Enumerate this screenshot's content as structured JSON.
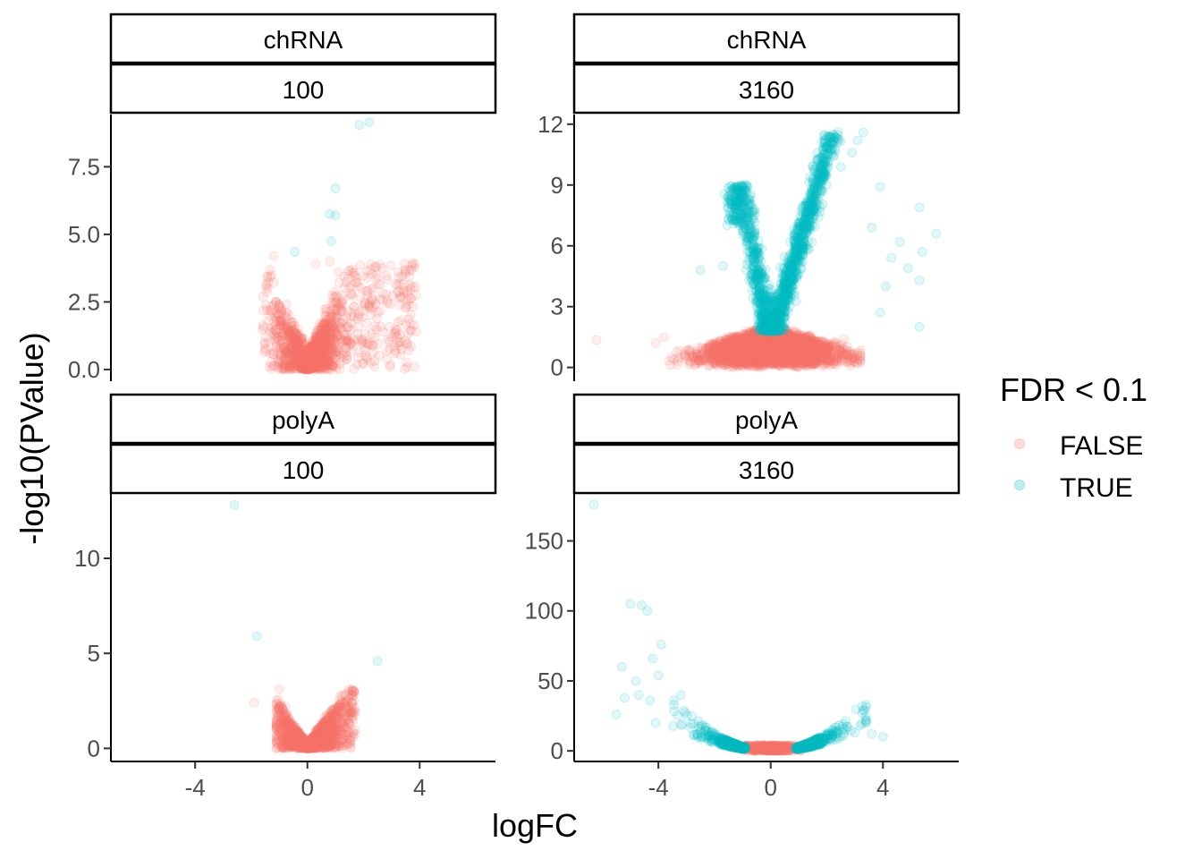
{
  "chart_data": {
    "type": "scatter",
    "facets": [
      {
        "id": "chRNA-100",
        "strip_top": "chRNA",
        "strip_bottom": "100",
        "ylim": [
          -0.3,
          9.3
        ],
        "yticks": [
          0.0,
          2.5,
          5.0,
          7.5
        ],
        "ytick_labels": [
          "0.0",
          "2.5",
          "5.0",
          "7.5"
        ],
        "true_points": [
          {
            "x": 1.85,
            "y": 9.05
          },
          {
            "x": 2.2,
            "y": 9.15
          },
          {
            "x": 1.0,
            "y": 6.7
          },
          {
            "x": 0.8,
            "y": 5.75
          },
          {
            "x": 1.0,
            "y": 5.7
          },
          {
            "x": 0.85,
            "y": 4.75
          },
          {
            "x": -0.45,
            "y": 4.35
          }
        ],
        "false_cloud": {
          "kind": "v",
          "xmin": -1.6,
          "xmax": 3.9,
          "ymax": 4.0,
          "ybase": 0.9
        },
        "false_points": [
          {
            "x": -1.2,
            "y": 4.2
          },
          {
            "x": 0.3,
            "y": 3.9
          },
          {
            "x": 0.8,
            "y": 4.0
          },
          {
            "x": 1.1,
            "y": 3.6
          },
          {
            "x": 2.1,
            "y": 2.9
          },
          {
            "x": 3.7,
            "y": 0.85
          },
          {
            "x": -1.5,
            "y": 0.7
          },
          {
            "x": -1.3,
            "y": 0.25
          },
          {
            "x": 1.6,
            "y": 2.1
          },
          {
            "x": 2.4,
            "y": 1.6
          },
          {
            "x": 3.2,
            "y": 1.2
          }
        ]
      },
      {
        "id": "chRNA-3160",
        "strip_top": "chRNA",
        "strip_bottom": "3160",
        "ylim": [
          -0.5,
          12.3
        ],
        "yticks": [
          0,
          3,
          6,
          9,
          12
        ],
        "ytick_labels": [
          "0",
          "3",
          "6",
          "9",
          "12"
        ],
        "true_points": [
          {
            "x": 5.3,
            "y": 7.9
          },
          {
            "x": 5.9,
            "y": 6.6
          },
          {
            "x": 4.6,
            "y": 6.2
          },
          {
            "x": 5.4,
            "y": 5.7
          },
          {
            "x": 3.9,
            "y": 8.9
          },
          {
            "x": 3.6,
            "y": 6.9
          },
          {
            "x": 4.9,
            "y": 4.9
          },
          {
            "x": 5.3,
            "y": 4.3
          },
          {
            "x": 3.9,
            "y": 2.7
          },
          {
            "x": 5.3,
            "y": 2.0
          },
          {
            "x": 4.3,
            "y": 5.4
          },
          {
            "x": 4.1,
            "y": 4.0
          },
          {
            "x": -2.5,
            "y": 4.8
          },
          {
            "x": -1.7,
            "y": 5.0
          },
          {
            "x": 2.4,
            "y": 11.6
          },
          {
            "x": 3.3,
            "y": 11.6
          },
          {
            "x": 3.1,
            "y": 11.2
          },
          {
            "x": 2.9,
            "y": 10.6
          }
        ],
        "true_cloud": {
          "kind": "arms",
          "xmin": -1.8,
          "xmax": 3.2,
          "ymin": 1.8,
          "ymax": 11.5
        },
        "false_cloud": {
          "kind": "band",
          "xmin": -3.9,
          "xmax": 3.2,
          "ymax": 1.8
        },
        "false_points": [
          {
            "x": -6.2,
            "y": 1.35
          },
          {
            "x": -4.1,
            "y": 1.2
          },
          {
            "x": -3.8,
            "y": 1.5
          },
          {
            "x": 2.6,
            "y": 1.4
          }
        ]
      },
      {
        "id": "polyA-100",
        "strip_top": "polyA",
        "strip_bottom": "100",
        "ylim": [
          -0.5,
          13.2
        ],
        "yticks": [
          0,
          5,
          10
        ],
        "ytick_labels": [
          "0",
          "5",
          "10"
        ],
        "true_points": [
          {
            "x": -2.6,
            "y": 12.8
          },
          {
            "x": -1.8,
            "y": 5.9
          },
          {
            "x": 2.5,
            "y": 4.6
          }
        ],
        "false_cloud": {
          "kind": "v",
          "xmin": -1.1,
          "xmax": 1.7,
          "ymax": 3.1,
          "ybase": 0.3
        },
        "false_points": [
          {
            "x": -1.9,
            "y": 2.4
          },
          {
            "x": -1.0,
            "y": 3.1
          },
          {
            "x": 1.6,
            "y": 3.1
          },
          {
            "x": -0.8,
            "y": 2.2
          },
          {
            "x": 1.1,
            "y": 2.2
          }
        ]
      },
      {
        "id": "polyA-3160",
        "strip_top": "polyA",
        "strip_bottom": "3160",
        "ylim": [
          -5,
          181
        ],
        "yticks": [
          0,
          50,
          100,
          150
        ],
        "ytick_labels": [
          "0",
          "50",
          "100",
          "150"
        ],
        "true_points": [
          {
            "x": -6.3,
            "y": 176
          },
          {
            "x": -5.0,
            "y": 105
          },
          {
            "x": -4.6,
            "y": 104
          },
          {
            "x": -4.4,
            "y": 100
          },
          {
            "x": -3.9,
            "y": 76
          },
          {
            "x": -5.3,
            "y": 60
          },
          {
            "x": -4.8,
            "y": 50
          },
          {
            "x": -4.2,
            "y": 66
          },
          {
            "x": -5.5,
            "y": 26
          },
          {
            "x": -4.0,
            "y": 54
          },
          {
            "x": -3.2,
            "y": 40
          },
          {
            "x": -4.7,
            "y": 40
          },
          {
            "x": -4.3,
            "y": 36
          },
          {
            "x": 3.3,
            "y": 29
          },
          {
            "x": 4.0,
            "y": 10
          },
          {
            "x": 3.6,
            "y": 12
          },
          {
            "x": -5.2,
            "y": 38
          },
          {
            "x": -4.1,
            "y": 20
          }
        ],
        "true_cloud": {
          "kind": "parabola",
          "xmin": -4.4,
          "xmax": 3.4,
          "a": 2.3,
          "spread": 0.45
        },
        "false_cloud": {
          "kind": "blob",
          "xmin": -1.3,
          "xmax": 1.4,
          "ymax": 4
        }
      }
    ],
    "xlim": [
      -7.0,
      6.7
    ],
    "xticks": [
      -4,
      0,
      4
    ],
    "xtick_labels": [
      "-4",
      "0",
      "4"
    ],
    "xlabel": "logFC",
    "ylabel": "-log10(PValue)",
    "legend": {
      "title": "FDR < 0.1",
      "placement": "right",
      "entries": [
        {
          "label": "FALSE",
          "color": "#F8766D"
        },
        {
          "label": "TRUE",
          "color": "#00BFC4"
        }
      ]
    },
    "point_alpha": 0.12,
    "grid": false
  }
}
